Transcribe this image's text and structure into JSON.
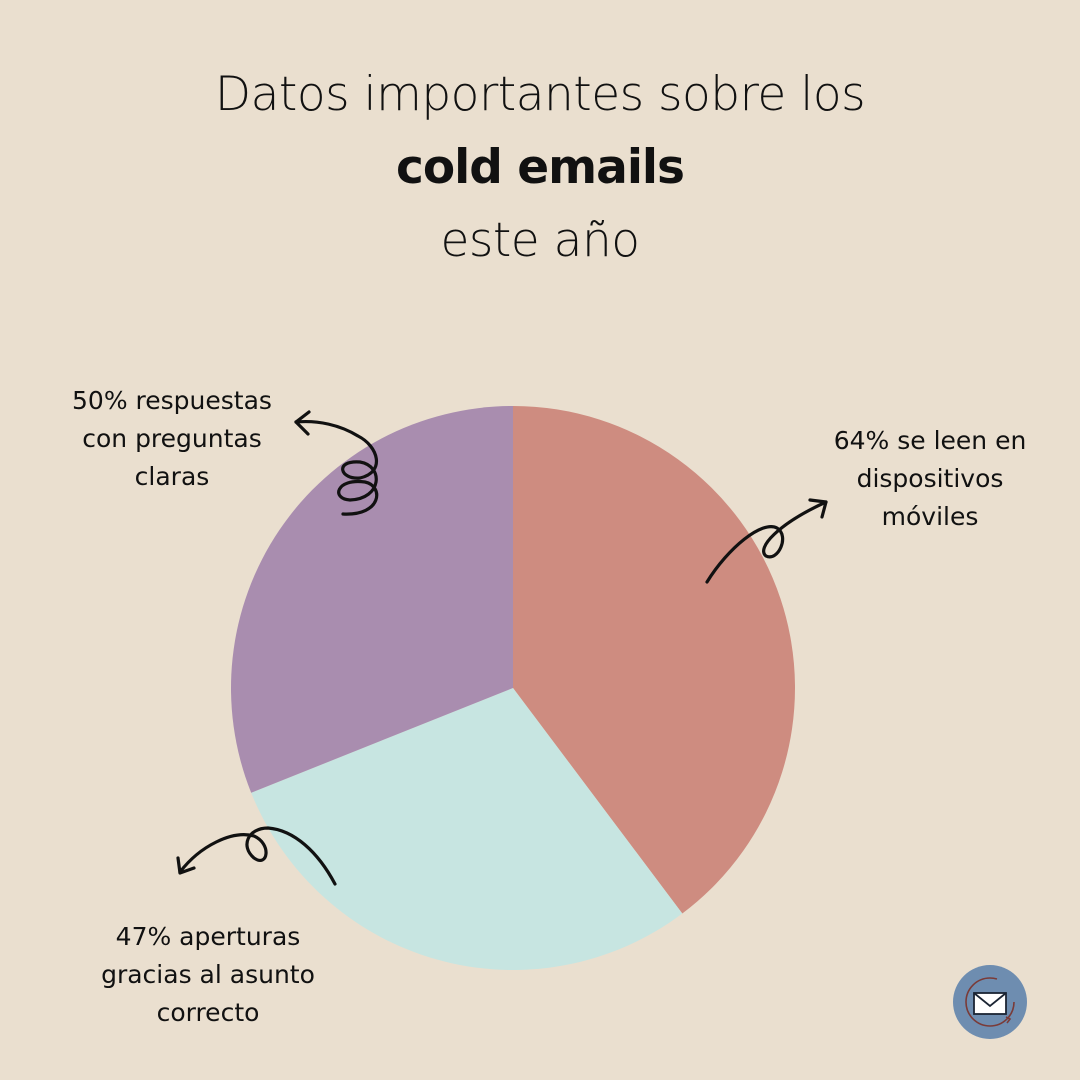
{
  "page": {
    "background": "#EADFCF"
  },
  "title": {
    "line1": "Datos importantes sobre los",
    "line2": "cold emails",
    "line3": "este año"
  },
  "chart_data": {
    "type": "pie",
    "title": "Datos importantes sobre los cold emails este año",
    "series": [
      {
        "name": "64% se leen en dispositivos móviles",
        "value": 64,
        "color": "#CE8C80",
        "label_lines": [
          "64% se leen en",
          "dispositivos",
          "móviles"
        ]
      },
      {
        "name": "47% aperturas gracias al asunto correcto",
        "value": 47,
        "color": "#C7E5E1",
        "label_lines": [
          "47% aperturas",
          "gracias al asunto",
          "correcto"
        ]
      },
      {
        "name": "50% respuestas con preguntas claras",
        "value": 50,
        "color": "#A98DAF",
        "label_lines": [
          "50% respuestas",
          "con preguntas",
          "claras"
        ]
      }
    ]
  },
  "logo": {
    "icon": "envelope-icon",
    "fill": "#6E8DB0",
    "ring_color": "#7A3B38"
  }
}
